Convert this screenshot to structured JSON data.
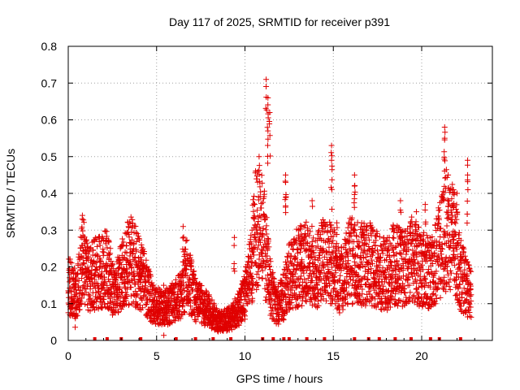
{
  "chart_data": {
    "type": "scatter",
    "title": "Day 117 of 2025, SRMTID for receiver p391",
    "xlabel": "GPS time / hours",
    "ylabel": "SRMTID / TECUs",
    "xlim": [
      0,
      24
    ],
    "ylim": [
      0,
      0.8
    ],
    "grid": true,
    "marker": "+",
    "color": "#e00000",
    "xticks": [
      0,
      5,
      10,
      15,
      20
    ],
    "xtick_labels": [
      "0",
      "5",
      "10",
      "15",
      "20"
    ],
    "yticks": [
      0,
      0.1,
      0.2,
      0.3,
      0.4,
      0.5,
      0.6,
      0.7,
      0.8
    ],
    "ytick_labels": [
      "0",
      "0.1",
      "0.2",
      "0.3",
      "0.4",
      "0.5",
      "0.6",
      "0.7",
      "0.8"
    ],
    "trend": [
      [
        0.0,
        0.15
      ],
      [
        0.5,
        0.12
      ],
      [
        0.8,
        0.22
      ],
      [
        1.2,
        0.17
      ],
      [
        2.2,
        0.2
      ],
      [
        2.6,
        0.12
      ],
      [
        3.2,
        0.2
      ],
      [
        3.6,
        0.22
      ],
      [
        4.4,
        0.15
      ],
      [
        4.8,
        0.1
      ],
      [
        5.5,
        0.09
      ],
      [
        6.2,
        0.11
      ],
      [
        6.7,
        0.18
      ],
      [
        7.2,
        0.11
      ],
      [
        8.0,
        0.08
      ],
      [
        8.5,
        0.05
      ],
      [
        9.2,
        0.06
      ],
      [
        9.8,
        0.1
      ],
      [
        10.2,
        0.15
      ],
      [
        10.6,
        0.3
      ],
      [
        11.0,
        0.3
      ],
      [
        11.4,
        0.15
      ],
      [
        11.8,
        0.09
      ],
      [
        12.2,
        0.12
      ],
      [
        12.5,
        0.18
      ],
      [
        13.0,
        0.2
      ],
      [
        13.5,
        0.22
      ],
      [
        14.0,
        0.18
      ],
      [
        14.5,
        0.22
      ],
      [
        15.0,
        0.2
      ],
      [
        15.4,
        0.16
      ],
      [
        16.0,
        0.22
      ],
      [
        16.5,
        0.21
      ],
      [
        17.0,
        0.21
      ],
      [
        17.5,
        0.19
      ],
      [
        18.0,
        0.18
      ],
      [
        18.5,
        0.21
      ],
      [
        19.0,
        0.2
      ],
      [
        19.5,
        0.22
      ],
      [
        20.0,
        0.2
      ],
      [
        20.5,
        0.18
      ],
      [
        21.0,
        0.24
      ],
      [
        21.4,
        0.3
      ],
      [
        21.8,
        0.28
      ],
      [
        22.2,
        0.18
      ],
      [
        22.6,
        0.14
      ],
      [
        22.8,
        0.12
      ]
    ],
    "peaks": [
      [
        0.4,
        0.17
      ],
      [
        0.8,
        0.34
      ],
      [
        1.0,
        0.27
      ],
      [
        2.3,
        0.27
      ],
      [
        3.3,
        0.29
      ],
      [
        4.1,
        0.24
      ],
      [
        5.4,
        0.15
      ],
      [
        6.5,
        0.31
      ],
      [
        9.4,
        0.28
      ],
      [
        10.4,
        0.3
      ],
      [
        10.8,
        0.5
      ],
      [
        11.2,
        0.71
      ],
      [
        11.3,
        0.66
      ],
      [
        11.4,
        0.62
      ],
      [
        11.3,
        0.57
      ],
      [
        12.3,
        0.45
      ],
      [
        12.3,
        0.43
      ],
      [
        13.2,
        0.31
      ],
      [
        13.8,
        0.38
      ],
      [
        14.9,
        0.53
      ],
      [
        14.9,
        0.49
      ],
      [
        15.2,
        0.32
      ],
      [
        16.2,
        0.45
      ],
      [
        16.2,
        0.42
      ],
      [
        18.8,
        0.38
      ],
      [
        19.7,
        0.35
      ],
      [
        20.2,
        0.37
      ],
      [
        21.3,
        0.58
      ],
      [
        21.3,
        0.55
      ],
      [
        21.5,
        0.45
      ],
      [
        21.8,
        0.41
      ],
      [
        22.0,
        0.4
      ],
      [
        22.6,
        0.49
      ],
      [
        22.6,
        0.45
      ]
    ],
    "zero_markers": [
      1.5,
      2.2,
      3.0,
      4.1,
      6.1,
      7.2,
      8.2,
      9.2,
      11.0,
      11.6,
      12.2,
      12.5,
      13.5,
      14.5,
      16.2,
      17.0,
      17.6,
      18.5,
      19.4,
      20.5,
      21.0,
      22.2
    ]
  }
}
